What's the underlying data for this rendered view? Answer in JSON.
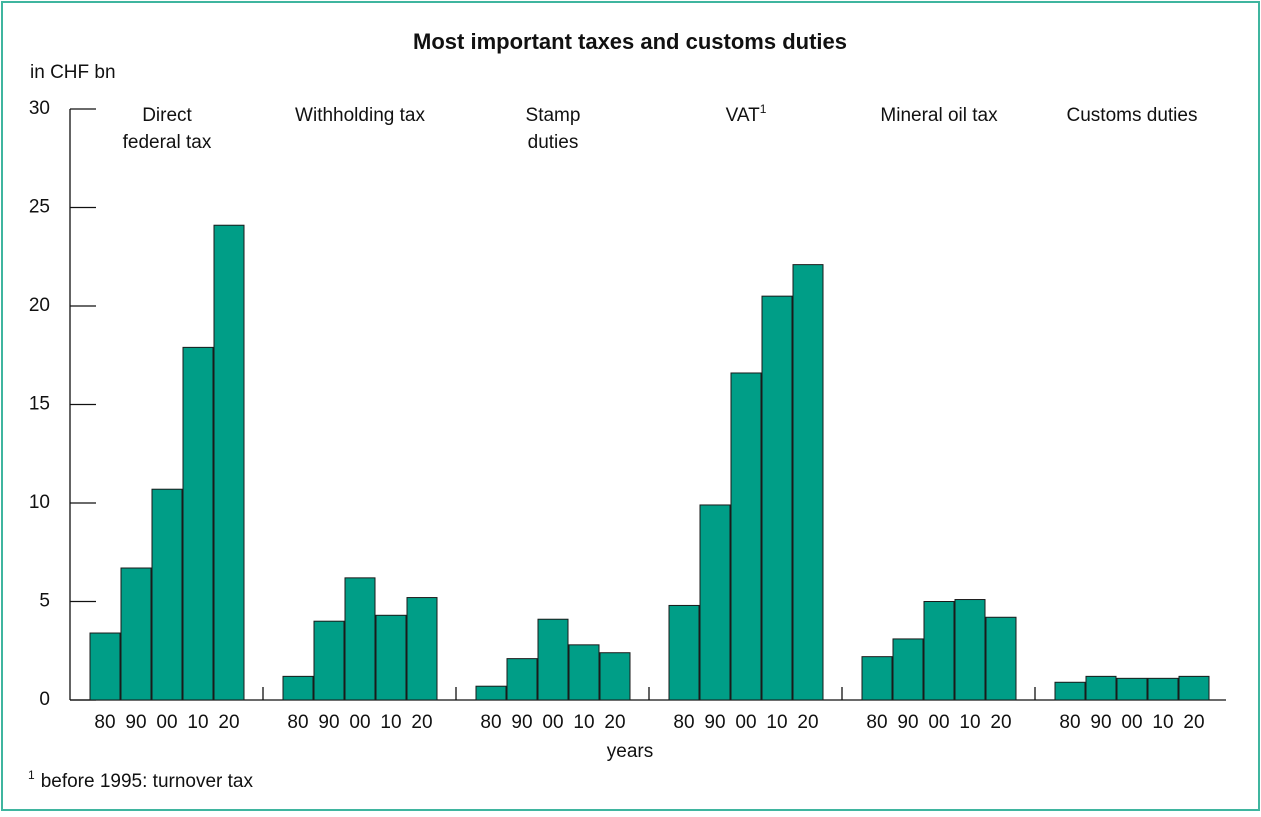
{
  "chart_data": {
    "type": "grouped_bar",
    "title": "Most important taxes and customs duties",
    "y_label": "in CHF bn",
    "x_label": "years",
    "color": "#009e87",
    "grid": false,
    "ylim": [
      0,
      30
    ],
    "yticks": [
      0,
      5,
      10,
      15,
      20,
      25,
      30
    ],
    "years": [
      "80",
      "90",
      "00",
      "10",
      "20"
    ],
    "groups": [
      {
        "label": [
          "Direct",
          "federal tax"
        ],
        "values": [
          3.4,
          6.7,
          10.7,
          17.9,
          24.1
        ]
      },
      {
        "label": [
          "Withholding tax"
        ],
        "values": [
          1.2,
          4.0,
          6.2,
          4.3,
          5.2
        ]
      },
      {
        "label": [
          "Stamp",
          "duties"
        ],
        "values": [
          0.7,
          2.1,
          4.1,
          2.8,
          2.4
        ]
      },
      {
        "label": [
          "VAT"
        ],
        "footnote_mark": "1",
        "values": [
          4.8,
          9.9,
          16.6,
          20.5,
          22.1
        ]
      },
      {
        "label": [
          "Mineral oil tax"
        ],
        "values": [
          2.2,
          3.1,
          5.0,
          5.1,
          4.2
        ]
      },
      {
        "label": [
          "Customs duties"
        ],
        "values": [
          0.9,
          1.2,
          1.1,
          1.1,
          1.2
        ]
      }
    ],
    "footnote": {
      "mark": "1",
      "text": "before 1995: turnover tax"
    }
  }
}
